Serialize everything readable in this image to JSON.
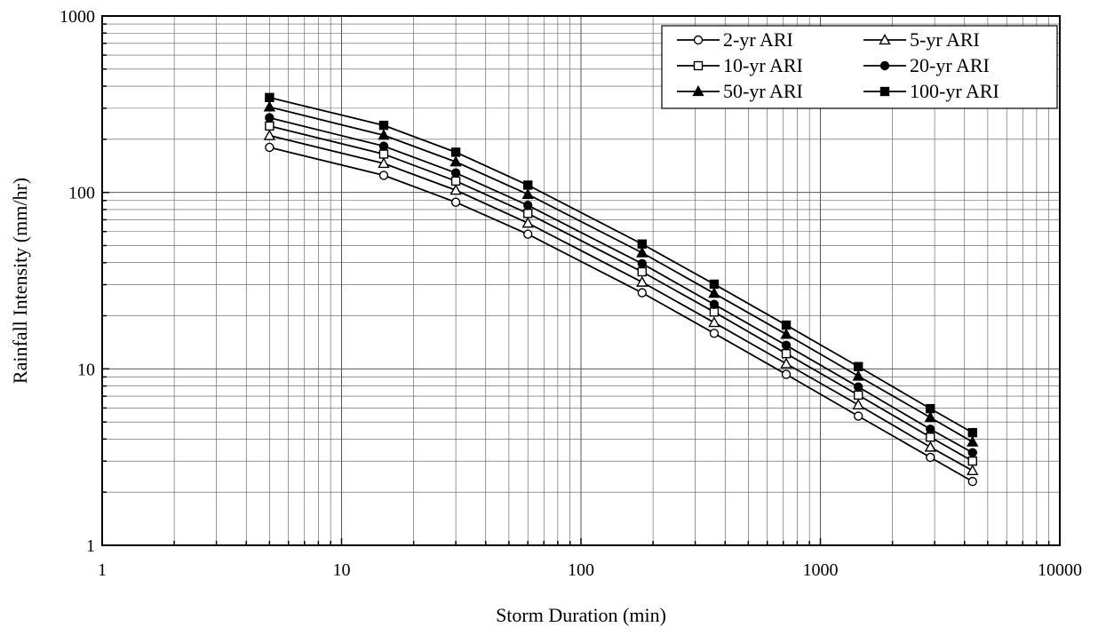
{
  "chart_data": {
    "type": "line",
    "title": "",
    "xlabel": "Storm Duration (min)",
    "ylabel": "Rainfall Intensity (mm/hr)",
    "x_scale": "log",
    "y_scale": "log",
    "xlim": [
      1,
      10000
    ],
    "ylim": [
      1,
      1000
    ],
    "grid": "major and minor",
    "legend_position": "top-right",
    "x_ticks": [
      1,
      10,
      100,
      1000,
      10000
    ],
    "x_tick_labels": [
      "1",
      "10",
      "100",
      "1000",
      "10000"
    ],
    "y_ticks": [
      1,
      10,
      100,
      1000
    ],
    "y_tick_labels": [
      "1",
      "10",
      "100",
      "1000"
    ],
    "x": [
      5,
      15,
      30,
      60,
      180,
      360,
      720,
      1440,
      2880,
      4320
    ],
    "series": [
      {
        "name": "2-yr ARI",
        "marker": "circle-open",
        "color": "#000000",
        "values": [
          180,
          125,
          88,
          58,
          27,
          15.9,
          9.3,
          5.4,
          3.15,
          2.3
        ]
      },
      {
        "name": "5-yr ARI",
        "marker": "triangle-open",
        "color": "#000000",
        "values": [
          210,
          146,
          103,
          67,
          31,
          18.3,
          10.7,
          6.25,
          3.6,
          2.65
        ]
      },
      {
        "name": "10-yr ARI",
        "marker": "square-open",
        "color": "#000000",
        "values": [
          238,
          165,
          116,
          76,
          35.5,
          21,
          12.2,
          7.1,
          4.1,
          3.0
        ]
      },
      {
        "name": "20-yr ARI",
        "marker": "circle-filled",
        "color": "#000000",
        "values": [
          265,
          183,
          129,
          84.5,
          39.5,
          23.2,
          13.6,
          7.9,
          4.55,
          3.35
        ]
      },
      {
        "name": "50-yr ARI",
        "marker": "triangle-filled",
        "color": "#000000",
        "values": [
          305,
          211,
          149,
          97.5,
          45.5,
          26.8,
          15.7,
          9.1,
          5.3,
          3.85
        ]
      },
      {
        "name": "100-yr ARI",
        "marker": "square-filled",
        "color": "#000000",
        "values": [
          345,
          240,
          169,
          110,
          51,
          30.2,
          17.7,
          10.3,
          5.95,
          4.35
        ]
      }
    ]
  }
}
